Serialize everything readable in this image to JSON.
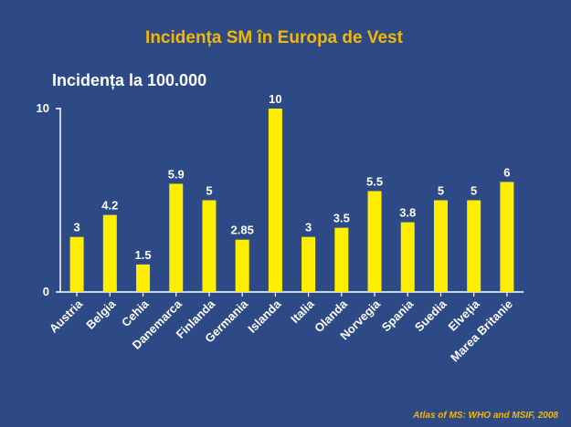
{
  "chart_data": {
    "type": "bar",
    "title": "Incidența SM în Europa de Vest",
    "ylabel": "Incidența la 100.000",
    "xlabel": "",
    "categories": [
      "Austria",
      "Belgia",
      "Cehia",
      "Danemarca",
      "Finlanda",
      "Germania",
      "Islanda",
      "Italia",
      "Olanda",
      "Norvegia",
      "Spania",
      "Suedia",
      "Elveția",
      "Marea Britanie"
    ],
    "values": [
      3,
      4.2,
      1.5,
      5.9,
      5,
      2.85,
      10,
      3,
      3.5,
      5.5,
      3.8,
      5,
      5,
      6
    ],
    "data_labels": [
      "3",
      "4.2",
      "1.5",
      "5.9",
      "5",
      "2.85",
      "10",
      "3",
      "3.5",
      "5.5",
      "3.8",
      "5",
      "5",
      "6"
    ],
    "ylim": [
      0,
      10
    ],
    "yticks": [
      0,
      10
    ],
    "ytick_labels": [
      "0",
      "10"
    ],
    "grid": false,
    "legend": "none",
    "bar_color": "#ffee00",
    "source": "Atlas of MS: WHO and MSIF, 2008"
  },
  "colors": {
    "background": "#2d4a86",
    "title": "#f5b800",
    "axis": "#ffffff",
    "text": "#ffffff"
  }
}
